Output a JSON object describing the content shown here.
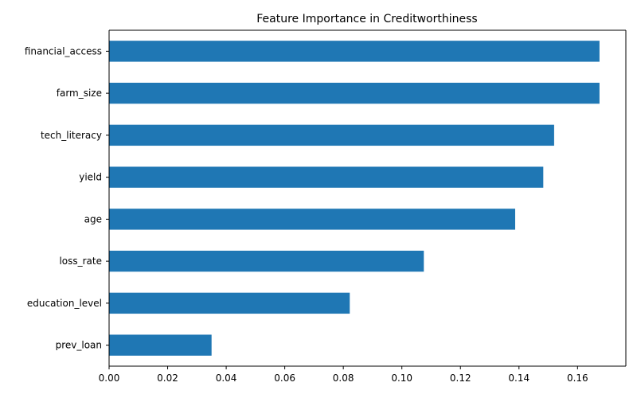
{
  "chart_data": {
    "type": "bar",
    "orientation": "horizontal",
    "title": "Feature Importance in Creditworthiness",
    "xlabel": "",
    "ylabel": "",
    "categories": [
      "financial_access",
      "farm_size",
      "tech_literacy",
      "yield",
      "age",
      "loss_rate",
      "education_level",
      "prev_loan"
    ],
    "values": [
      0.1675,
      0.1675,
      0.152,
      0.1483,
      0.1387,
      0.1075,
      0.0822,
      0.035
    ],
    "xlim": [
      0,
      0.1765
    ],
    "xticks": [
      0.0,
      0.02,
      0.04,
      0.06,
      0.08,
      0.1,
      0.12,
      0.14,
      0.16
    ],
    "xtick_labels": [
      "0.00",
      "0.02",
      "0.04",
      "0.06",
      "0.08",
      "0.10",
      "0.12",
      "0.14",
      "0.16"
    ],
    "grid": false,
    "bar_color": "#1f77b4"
  }
}
